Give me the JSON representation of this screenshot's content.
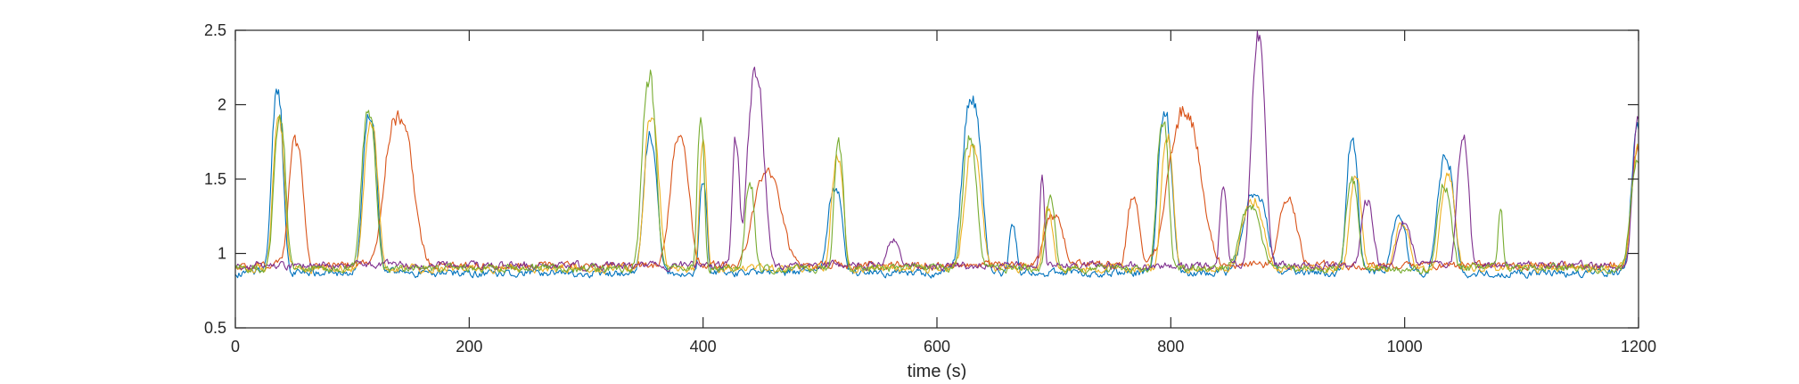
{
  "chart_data": {
    "type": "line",
    "title": "",
    "xlabel": "time (s)",
    "ylabel": "",
    "xlim": [
      0,
      1200
    ],
    "ylim": [
      0.5,
      2.5
    ],
    "x_ticks": [
      0,
      200,
      400,
      600,
      800,
      1000,
      1200
    ],
    "y_ticks": [
      0.5,
      1,
      1.5,
      2,
      2.5
    ],
    "grid": false,
    "box": true,
    "baseline_level": 0.9,
    "noise_amplitude": 0.035,
    "sample_step_s": 1,
    "series": [
      {
        "color": "#0072BD",
        "baseline": 0.87,
        "peaks": [
          [
            36,
            2.08,
            5
          ],
          [
            115,
            1.92,
            6
          ],
          [
            355,
            1.78,
            6
          ],
          [
            400,
            1.5,
            3
          ],
          [
            513,
            1.45,
            6
          ],
          [
            630,
            2.05,
            8
          ],
          [
            665,
            1.2,
            3
          ],
          [
            795,
            1.92,
            6
          ],
          [
            872,
            1.4,
            10
          ],
          [
            955,
            1.75,
            5
          ],
          [
            995,
            1.25,
            6
          ],
          [
            1035,
            1.65,
            7
          ],
          [
            1200,
            1.85,
            6
          ]
        ]
      },
      {
        "color": "#D95319",
        "baseline": 0.92,
        "peaks": [
          [
            52,
            1.78,
            6
          ],
          [
            140,
            1.92,
            12
          ],
          [
            380,
            1.78,
            8
          ],
          [
            455,
            1.55,
            12
          ],
          [
            700,
            1.25,
            8
          ],
          [
            768,
            1.38,
            5
          ],
          [
            812,
            1.93,
            14
          ],
          [
            900,
            1.35,
            8
          ],
          [
            1200,
            1.7,
            6
          ]
        ]
      },
      {
        "color": "#EDB120",
        "baseline": 0.9,
        "peaks": [
          [
            37,
            1.88,
            5
          ],
          [
            116,
            1.88,
            6
          ],
          [
            356,
            1.95,
            6
          ],
          [
            400,
            1.75,
            3
          ],
          [
            515,
            1.65,
            5
          ],
          [
            631,
            1.7,
            7
          ],
          [
            695,
            1.3,
            4
          ],
          [
            797,
            1.78,
            5
          ],
          [
            870,
            1.35,
            9
          ],
          [
            958,
            1.5,
            5
          ],
          [
            998,
            1.2,
            6
          ],
          [
            1037,
            1.5,
            6
          ],
          [
            1200,
            1.7,
            6
          ]
        ]
      },
      {
        "color": "#7E2F8E",
        "baseline": 0.92,
        "peaks": [
          [
            428,
            1.75,
            3
          ],
          [
            445,
            2.2,
            7
          ],
          [
            562,
            1.08,
            5
          ],
          [
            690,
            1.5,
            2
          ],
          [
            845,
            1.45,
            3
          ],
          [
            875,
            2.42,
            6
          ],
          [
            968,
            1.35,
            5
          ],
          [
            1000,
            1.2,
            6
          ],
          [
            1050,
            1.75,
            5
          ],
          [
            1200,
            1.9,
            5
          ]
        ]
      },
      {
        "color": "#77AC30",
        "baseline": 0.9,
        "peaks": [
          [
            38,
            1.92,
            5
          ],
          [
            114,
            1.95,
            6
          ],
          [
            354,
            2.2,
            6
          ],
          [
            398,
            1.92,
            3
          ],
          [
            440,
            1.45,
            4
          ],
          [
            516,
            1.75,
            4
          ],
          [
            628,
            1.78,
            6
          ],
          [
            697,
            1.35,
            4
          ],
          [
            793,
            1.88,
            5
          ],
          [
            868,
            1.32,
            9
          ],
          [
            955,
            1.52,
            5
          ],
          [
            1034,
            1.45,
            6
          ],
          [
            1082,
            1.3,
            2
          ],
          [
            1199,
            1.6,
            6
          ]
        ]
      }
    ]
  }
}
